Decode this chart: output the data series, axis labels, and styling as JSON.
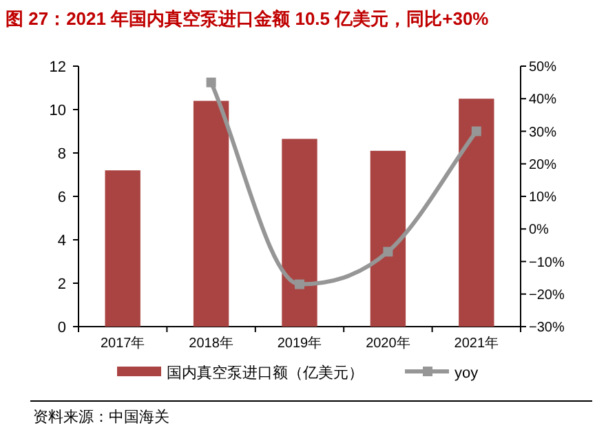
{
  "chart_data": {
    "type": "bar",
    "title": "图 27：2021 年国内真空泵进口金额 10.5 亿美元，同比+30%",
    "categories": [
      "2017年",
      "2018年",
      "2019年",
      "2020年",
      "2021年"
    ],
    "series": [
      {
        "name": "国内真空泵进口额（亿美元）",
        "color": "#a94442",
        "values": [
          7.2,
          10.4,
          8.65,
          8.1,
          10.5
        ]
      },
      {
        "name": "yoy",
        "type": "line",
        "axis": "y2",
        "color": "#969696",
        "values": [
          null,
          45,
          -17,
          -7,
          30
        ]
      }
    ],
    "ylim": [
      0,
      12
    ],
    "yticks": [
      0,
      2,
      4,
      6,
      8,
      10,
      12
    ],
    "y2lim": [
      -30,
      50
    ],
    "y2ticks": [
      {
        "value": -30,
        "label": "−30%"
      },
      {
        "value": -20,
        "label": "−20%"
      },
      {
        "value": -10,
        "label": "−10%"
      },
      {
        "value": 0,
        "label": "0%"
      },
      {
        "value": 10,
        "label": "10%"
      },
      {
        "value": 20,
        "label": "20%"
      },
      {
        "value": 30,
        "label": "30%"
      },
      {
        "value": 40,
        "label": "40%"
      },
      {
        "value": 50,
        "label": "50%"
      }
    ],
    "marker": "square",
    "legend": "bottom",
    "annotations": [
      "资料来源：中国海关"
    ]
  }
}
